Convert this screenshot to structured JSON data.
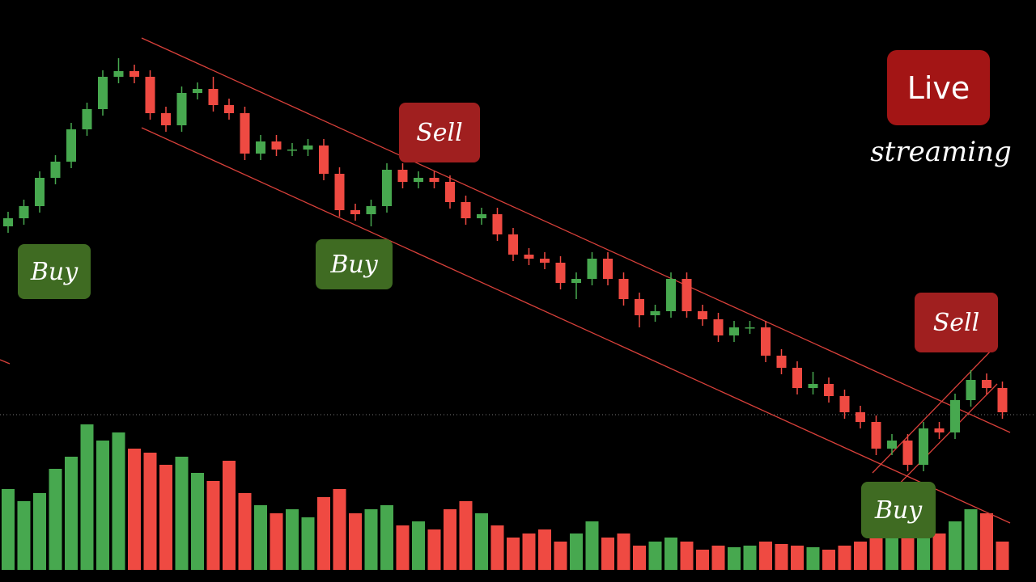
{
  "chart_data": {
    "type": "candlestick",
    "open": [
      440,
      450,
      465,
      500,
      520,
      560,
      585,
      625,
      632,
      625,
      580,
      565,
      605,
      610,
      590,
      580,
      530,
      545,
      535,
      535,
      540,
      505,
      460,
      455,
      465,
      510,
      495,
      500,
      495,
      470,
      450,
      455,
      430,
      405,
      400,
      395,
      370,
      375,
      400,
      375,
      350,
      330,
      335,
      375,
      335,
      325,
      305,
      315,
      315,
      280,
      265,
      240,
      245,
      230,
      210,
      198,
      165,
      175,
      145,
      190,
      185,
      225,
      250,
      240
    ],
    "high": [
      458,
      473,
      508,
      528,
      568,
      593,
      633,
      648,
      640,
      633,
      588,
      613,
      618,
      625,
      598,
      588,
      553,
      553,
      543,
      548,
      548,
      513,
      468,
      473,
      518,
      518,
      508,
      508,
      503,
      478,
      463,
      463,
      438,
      413,
      408,
      403,
      383,
      408,
      408,
      383,
      358,
      343,
      383,
      383,
      343,
      333,
      323,
      323,
      323,
      288,
      273,
      260,
      253,
      238,
      218,
      206,
      183,
      183,
      198,
      198,
      233,
      262,
      258,
      248
    ],
    "low": [
      432,
      442,
      457,
      492,
      512,
      552,
      577,
      617,
      617,
      572,
      557,
      557,
      597,
      582,
      572,
      522,
      522,
      527,
      527,
      527,
      497,
      452,
      447,
      440,
      457,
      487,
      487,
      487,
      462,
      442,
      442,
      422,
      397,
      392,
      387,
      362,
      350,
      367,
      367,
      342,
      315,
      322,
      327,
      327,
      317,
      297,
      297,
      307,
      272,
      257,
      232,
      232,
      222,
      202,
      190,
      157,
      157,
      137,
      137,
      177,
      177,
      217,
      232,
      202
    ],
    "close": [
      450,
      465,
      500,
      520,
      560,
      585,
      625,
      632,
      625,
      580,
      565,
      605,
      610,
      590,
      580,
      530,
      545,
      535,
      535,
      540,
      505,
      460,
      455,
      465,
      510,
      495,
      500,
      495,
      470,
      450,
      455,
      430,
      405,
      400,
      395,
      370,
      375,
      400,
      375,
      350,
      330,
      335,
      375,
      335,
      325,
      305,
      315,
      315,
      280,
      265,
      240,
      245,
      230,
      210,
      198,
      165,
      175,
      145,
      190,
      185,
      225,
      250,
      240,
      210
    ],
    "volume": [
      100,
      85,
      95,
      125,
      140,
      180,
      160,
      170,
      150,
      145,
      130,
      140,
      120,
      110,
      135,
      95,
      80,
      70,
      75,
      65,
      90,
      100,
      70,
      75,
      80,
      55,
      60,
      50,
      75,
      85,
      70,
      55,
      40,
      45,
      50,
      35,
      45,
      60,
      40,
      45,
      30,
      35,
      40,
      35,
      25,
      30,
      28,
      30,
      35,
      32,
      30,
      28,
      25,
      30,
      35,
      40,
      45,
      55,
      40,
      45,
      60,
      75,
      70,
      35
    ],
    "ylim": [
      0,
      720
    ],
    "volume_lim": [
      0,
      200
    ],
    "up_color": "#47a84f",
    "down_color": "#ef4a42",
    "annotations": [
      "Buy",
      "Buy",
      "Sell",
      "Sell",
      "Buy"
    ],
    "badge": "Live",
    "badge_caption": "streaming"
  }
}
